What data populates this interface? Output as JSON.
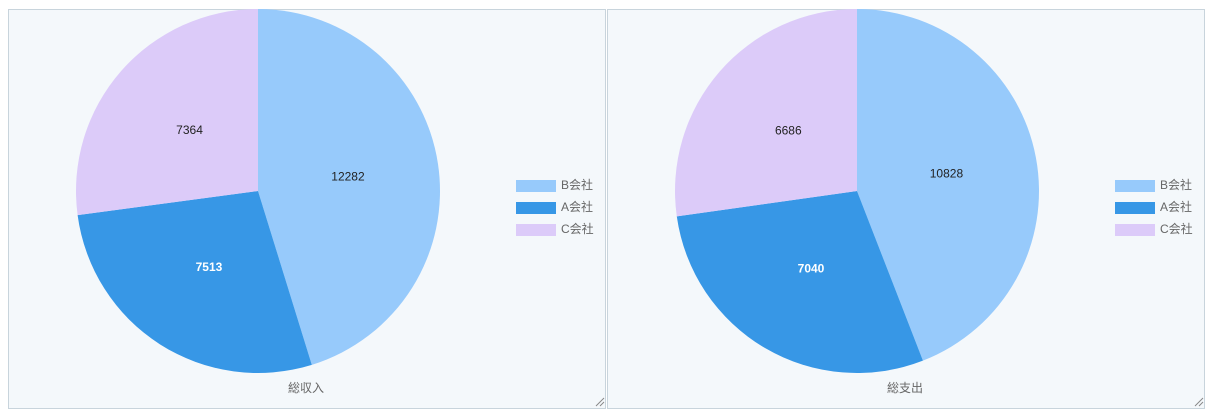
{
  "chart_data": [
    {
      "type": "pie",
      "title": "総収入",
      "categories": [
        "B会社",
        "A会社",
        "C会社"
      ],
      "values": [
        12282,
        7513,
        7364
      ],
      "colors": [
        "#97cafb",
        "#3797e6",
        "#dccbf9"
      ]
    },
    {
      "type": "pie",
      "title": "総支出",
      "categories": [
        "B会社",
        "A会社",
        "C会社"
      ],
      "values": [
        10828,
        7040,
        6686
      ],
      "colors": [
        "#97cafb",
        "#3797e6",
        "#dccbf9"
      ]
    }
  ]
}
